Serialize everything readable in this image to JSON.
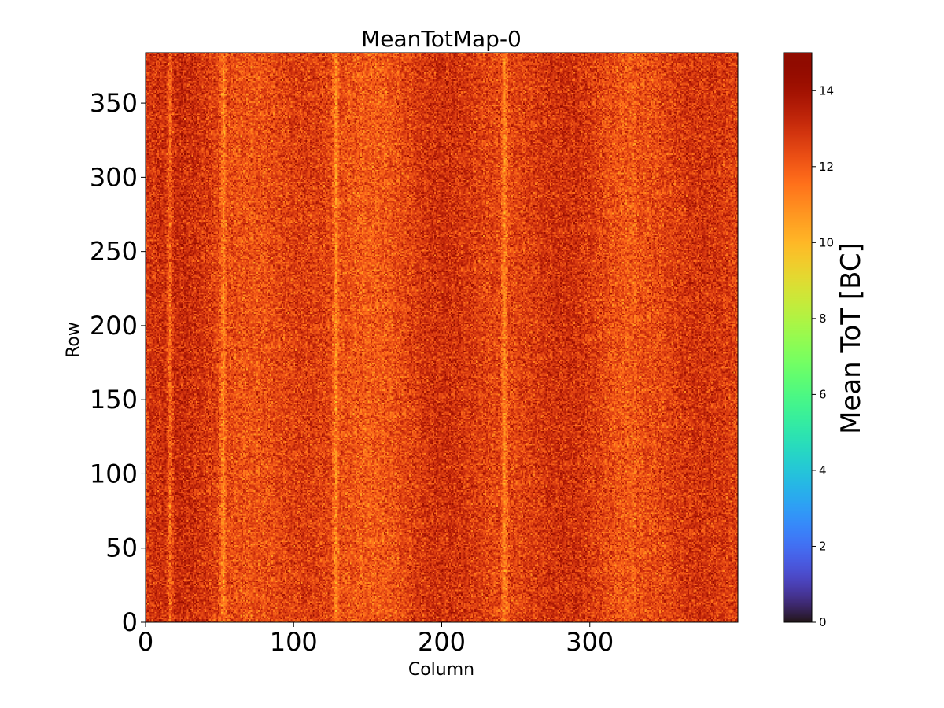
{
  "chart_data": {
    "type": "heatmap",
    "title": "MeanTotMap-0",
    "xlabel": "Column",
    "ylabel": "Row",
    "colorbar_label": "Mean ToT [BC]",
    "colormap": "turbo",
    "xlim": [
      0,
      400
    ],
    "ylim": [
      0,
      384
    ],
    "clim": [
      0,
      15
    ],
    "n_columns": 400,
    "n_rows": 384,
    "xticks": [
      0,
      100,
      200,
      300
    ],
    "xtick_labels": [
      "0",
      "100",
      "200",
      "300"
    ],
    "yticks": [
      0,
      50,
      100,
      150,
      200,
      250,
      300,
      350
    ],
    "ytick_labels": [
      "0",
      "50",
      "100",
      "150",
      "200",
      "250",
      "300",
      "350"
    ],
    "colorbar_ticks": [
      0,
      2,
      4,
      6,
      8,
      10,
      12,
      14
    ],
    "colorbar_tick_labels": [
      "0",
      "2",
      "4",
      "6",
      "8",
      "10",
      "12",
      "14"
    ],
    "typical_value_range": [
      10,
      14.5
    ],
    "typical_mean": 12.6,
    "bright_columns": [
      16,
      52,
      128,
      242
    ],
    "grid": false
  }
}
